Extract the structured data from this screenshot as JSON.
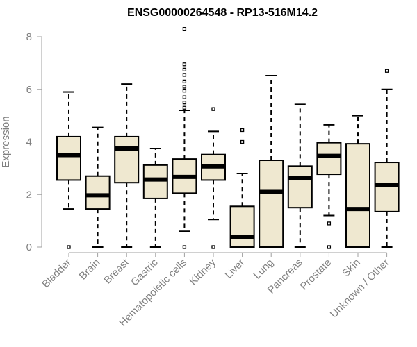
{
  "chart_data": {
    "type": "box",
    "title": "ENSG00000264548 - RP13-516M14.2",
    "xlabel": "",
    "ylabel": "Expression",
    "ylim": [
      0,
      8
    ],
    "yticks": [
      0,
      2,
      4,
      6,
      8
    ],
    "box_fill": "#EFE8D0",
    "categories": [
      "Bladder",
      "Brain",
      "Breast",
      "Gastric",
      "Hematopoietic cells",
      "Kidney",
      "Liver",
      "Lung",
      "Pancreas",
      "Prostate",
      "Skin",
      "Unknown / Other"
    ],
    "boxes": [
      {
        "whislo": 1.45,
        "q1": 2.55,
        "med": 3.5,
        "q3": 4.2,
        "whishi": 5.9,
        "fliers": [
          0
        ]
      },
      {
        "whislo": 0,
        "q1": 1.45,
        "med": 1.97,
        "q3": 2.7,
        "whishi": 4.55,
        "fliers": []
      },
      {
        "whislo": 0,
        "q1": 2.45,
        "med": 3.75,
        "q3": 4.2,
        "whishi": 6.2,
        "fliers": []
      },
      {
        "whislo": 0,
        "q1": 1.85,
        "med": 2.57,
        "q3": 3.12,
        "whishi": 3.75,
        "fliers": []
      },
      {
        "whislo": 0.6,
        "q1": 2.05,
        "med": 2.67,
        "q3": 3.35,
        "whishi": 5.2,
        "fliers": [
          0,
          5.3,
          5.5,
          5.7,
          5.95,
          6.1,
          6.3,
          6.55,
          6.75,
          6.95,
          8.3
        ]
      },
      {
        "whislo": 1.05,
        "q1": 2.55,
        "med": 3.07,
        "q3": 3.52,
        "whishi": 4.4,
        "fliers": [
          0,
          5.25
        ]
      },
      {
        "whislo": 0,
        "q1": 0,
        "med": 0.38,
        "q3": 1.55,
        "whishi": 2.8,
        "fliers": [
          4.0,
          4.45
        ]
      },
      {
        "whislo": 0,
        "q1": 0,
        "med": 2.1,
        "q3": 3.3,
        "whishi": 6.52,
        "fliers": []
      },
      {
        "whislo": 0,
        "q1": 1.5,
        "med": 2.62,
        "q3": 3.08,
        "whishi": 5.43,
        "fliers": []
      },
      {
        "whislo": 1.2,
        "q1": 2.77,
        "med": 3.47,
        "q3": 3.97,
        "whishi": 4.65,
        "fliers": [
          0,
          0.9
        ]
      },
      {
        "whislo": 0,
        "q1": 0,
        "med": 1.45,
        "q3": 3.93,
        "whishi": 5.0,
        "fliers": []
      },
      {
        "whislo": 0,
        "q1": 1.35,
        "med": 2.37,
        "q3": 3.22,
        "whishi": 6.0,
        "fliers": [
          6.7
        ]
      }
    ]
  }
}
